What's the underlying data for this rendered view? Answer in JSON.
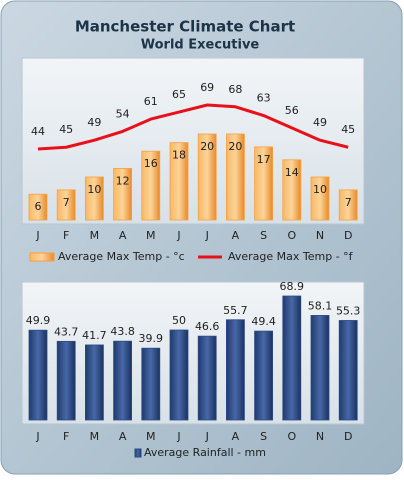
{
  "chart_data": [
    {
      "type": "bar",
      "title": "Manchester Climate Chart",
      "subtitle": "World Executive",
      "categories": [
        "J",
        "F",
        "M",
        "A",
        "M",
        "J",
        "J",
        "A",
        "S",
        "O",
        "N",
        "D"
      ],
      "series": [
        {
          "name": "Average Max Temp - °c",
          "type": "bar",
          "color": "#f7a040",
          "values": [
            6,
            7,
            10,
            12,
            16,
            18,
            20,
            20,
            17,
            14,
            10,
            7
          ]
        },
        {
          "name": "Average Max Temp - °f",
          "type": "line",
          "color": "#e8101a",
          "values": [
            44,
            45,
            49,
            54,
            61,
            65,
            69,
            68,
            63,
            56,
            49,
            45
          ]
        }
      ]
    },
    {
      "type": "bar",
      "categories": [
        "J",
        "F",
        "M",
        "A",
        "M",
        "J",
        "J",
        "A",
        "S",
        "O",
        "N",
        "D"
      ],
      "series": [
        {
          "name": "Average Rainfall - mm",
          "type": "bar",
          "color": "#2b4b85",
          "values": [
            49.9,
            43.7,
            41.7,
            43.8,
            39.9,
            50,
            46.6,
            55.7,
            49.4,
            68.9,
            58.1,
            55.3
          ]
        }
      ]
    }
  ]
}
